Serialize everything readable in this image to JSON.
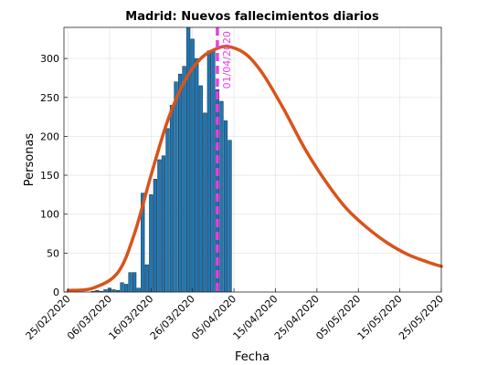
{
  "chart_data": {
    "type": "bar",
    "title": "Madrid: Nuevos fallecimientos diarios",
    "xlabel": "Fecha",
    "ylabel": "Personas",
    "ylim": [
      0,
      340
    ],
    "yticks": [
      0,
      50,
      100,
      150,
      200,
      250,
      300
    ],
    "x_start": "24/02/2020",
    "x_end": "25/05/2020",
    "xticks": [
      "25/02/2020",
      "06/03/2020",
      "16/03/2020",
      "26/03/2020",
      "05/04/2020",
      "15/04/2020",
      "25/04/2020",
      "05/05/2020",
      "15/05/2020",
      "25/05/2020"
    ],
    "grid": true,
    "colors": {
      "bars": "#1f77b4",
      "bar_edge": "#0d2a3f",
      "fit": "#d95319",
      "marker": "#e83fe8"
    },
    "series": [
      {
        "type": "bar",
        "x": [
          "02/03/2020",
          "03/03/2020",
          "04/03/2020",
          "05/03/2020",
          "06/03/2020",
          "07/03/2020",
          "08/03/2020",
          "09/03/2020",
          "10/03/2020",
          "11/03/2020",
          "12/03/2020",
          "13/03/2020",
          "14/03/2020",
          "15/03/2020",
          "16/03/2020",
          "17/03/2020",
          "18/03/2020",
          "19/03/2020",
          "20/03/2020",
          "21/03/2020",
          "22/03/2020",
          "23/03/2020",
          "24/03/2020",
          "25/03/2020",
          "26/03/2020",
          "27/03/2020",
          "28/03/2020",
          "29/03/2020",
          "30/03/2020",
          "31/03/2020",
          "01/04/2020",
          "02/04/2020",
          "03/04/2020",
          "04/04/2020"
        ],
        "values": [
          1,
          2,
          1,
          3,
          5,
          3,
          2,
          12,
          10,
          25,
          25,
          5,
          127,
          35,
          125,
          145,
          170,
          175,
          210,
          240,
          270,
          280,
          290,
          340,
          325,
          300,
          265,
          230,
          310,
          310,
          260,
          245,
          220,
          195
        ]
      },
      {
        "type": "line",
        "x": [
          "25/02/2020",
          "02/03/2020",
          "08/03/2020",
          "12/03/2020",
          "16/03/2020",
          "20/03/2020",
          "24/03/2020",
          "28/03/2020",
          "01/04/2020",
          "04/04/2020",
          "08/04/2020",
          "12/04/2020",
          "17/04/2020",
          "22/04/2020",
          "27/04/2020",
          "02/05/2020",
          "07/05/2020",
          "12/05/2020",
          "17/05/2020",
          "22/05/2020",
          "25/05/2020"
        ],
        "values": [
          2,
          5,
          25,
          75,
          150,
          220,
          270,
          300,
          313,
          315,
          305,
          280,
          235,
          185,
          143,
          108,
          83,
          63,
          48,
          38,
          33
        ]
      }
    ],
    "vline": {
      "x": "01/04/2020",
      "label": "01/04/2020"
    }
  }
}
